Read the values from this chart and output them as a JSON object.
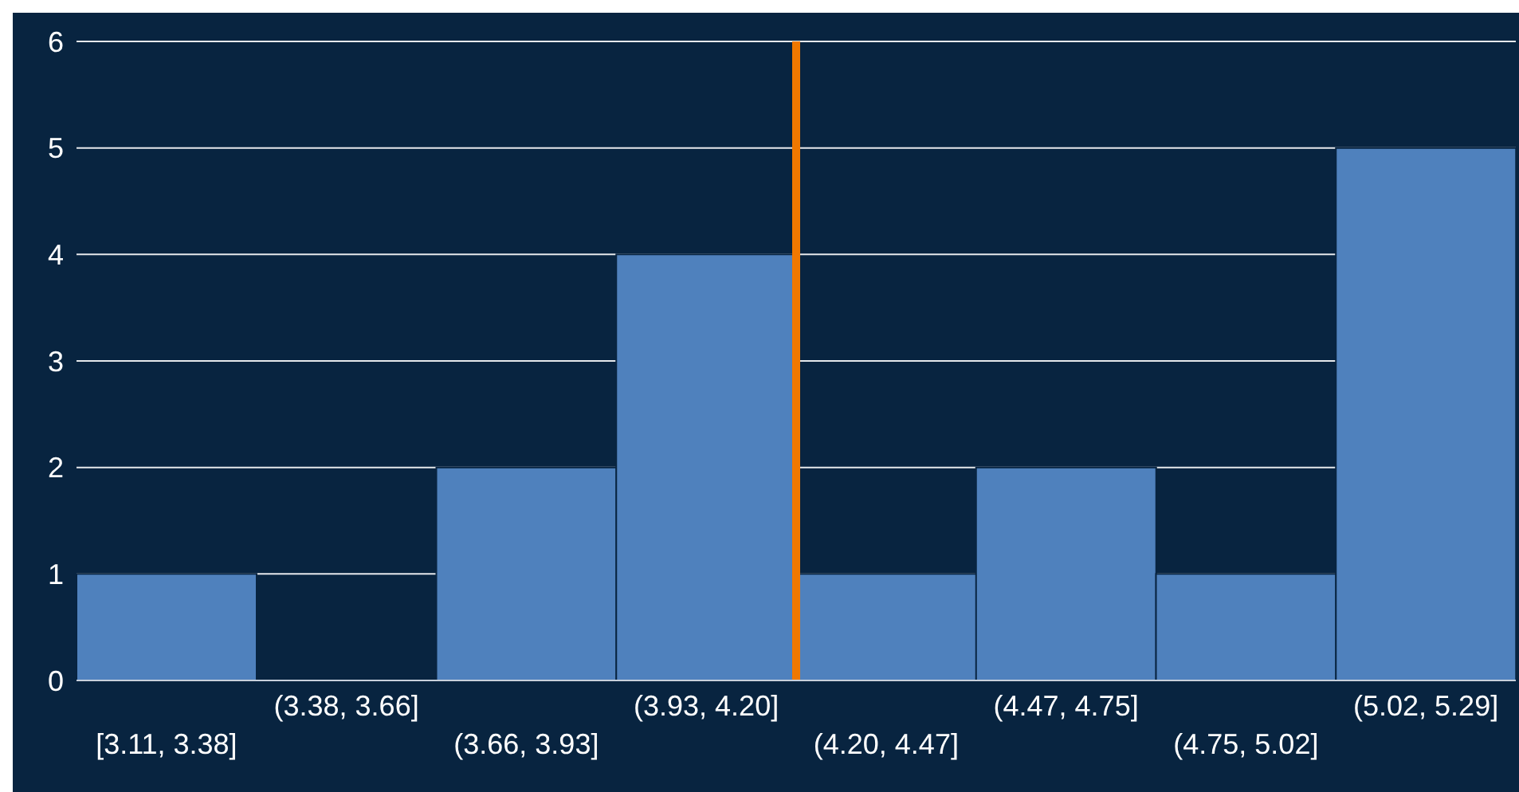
{
  "chart_data": {
    "type": "bar",
    "categories": [
      "[3.11, 3.38]",
      "(3.38, 3.66]",
      "(3.66, 3.93]",
      "(3.93, 4.20]",
      "(4.20, 4.47]",
      "(4.47, 4.75]",
      "(4.75, 5.02]",
      "(5.02, 5.29]"
    ],
    "values": [
      1,
      0,
      2,
      4,
      1,
      2,
      1,
      5
    ],
    "color": "#4f81bd",
    "ylim": [
      0,
      6
    ],
    "yticks": [
      0,
      1,
      2,
      3,
      4,
      5,
      6
    ],
    "grid": "y",
    "ref_lines": [
      {
        "axis": "x",
        "value": "(3.93, 4.20]",
        "color": "#f07800"
      }
    ]
  }
}
